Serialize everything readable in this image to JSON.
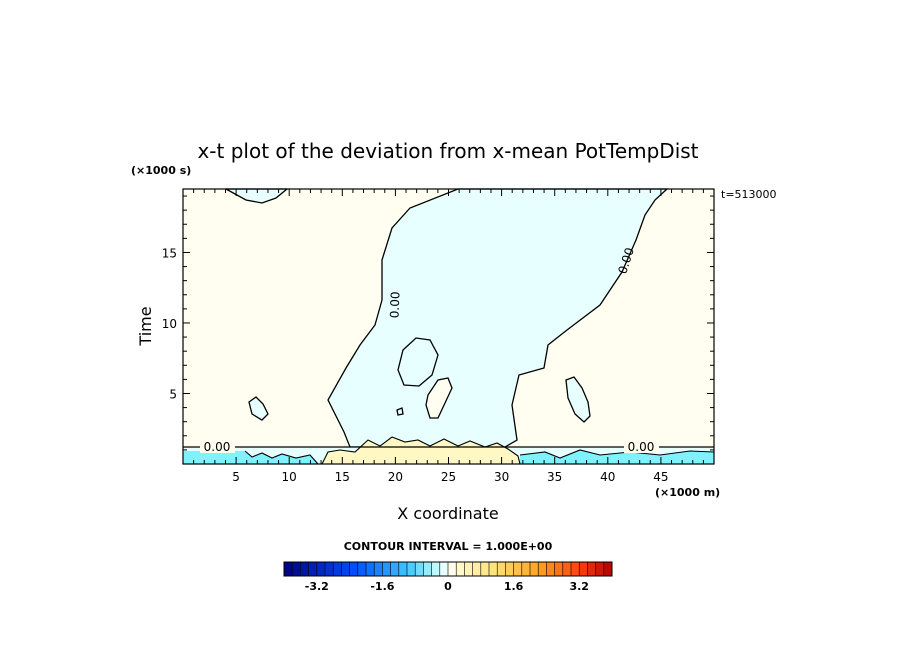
{
  "chart_data": {
    "type": "contour",
    "title": "x-t plot of the deviation from x-mean PotTempDist",
    "xlabel": "X coordinate",
    "ylabel": "Time",
    "x_unit": "(×1000 m)",
    "y_unit": "(×1000 s)",
    "xlim": [
      0,
      50
    ],
    "ylim": [
      0,
      19.5
    ],
    "x_ticks": [
      5,
      10,
      15,
      20,
      25,
      30,
      35,
      40,
      45
    ],
    "y_ticks": [
      5,
      10,
      15
    ],
    "timestamp": "t=513000",
    "contour_level_labels": [
      "0.00",
      "0.00",
      "0.00",
      "0.00"
    ],
    "contour_interval_text": "CONTOUR INTERVAL = 1.000E+00",
    "colorbar": {
      "min": -4,
      "max": 4,
      "tick_values": [
        -3.2,
        -1.6,
        0,
        1.6,
        3.2
      ],
      "tick_labels": [
        "-3.2",
        "-1.6",
        "0",
        "1.6",
        "3.2"
      ]
    },
    "colors": {
      "negative_fill": "#e8ffff",
      "positive_fill": "#fffef0",
      "surface_negative": "#7ff2ff",
      "surface_positive": "#fff7c4"
    }
  }
}
